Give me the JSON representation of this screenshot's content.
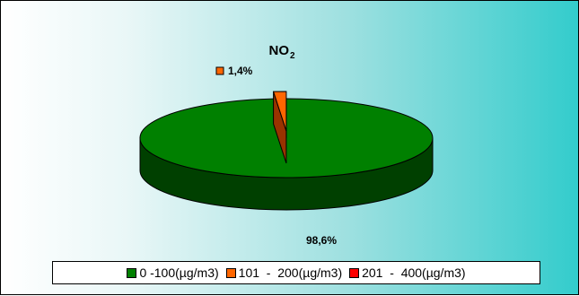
{
  "chart_data": {
    "type": "pie",
    "title": "NO",
    "title_subscript": "2",
    "categories": [
      "0 -100(µg/m3)",
      "101  -  200(µg/m3)",
      "201  -  400(µg/m3)"
    ],
    "values": [
      98.6,
      1.4,
      0
    ],
    "data_labels": [
      "98,6%",
      "1,4%",
      ""
    ],
    "colors": [
      "#008000",
      "#ff6600",
      "#ff0000"
    ],
    "legend_position": "bottom",
    "style": "3d-exploded"
  }
}
